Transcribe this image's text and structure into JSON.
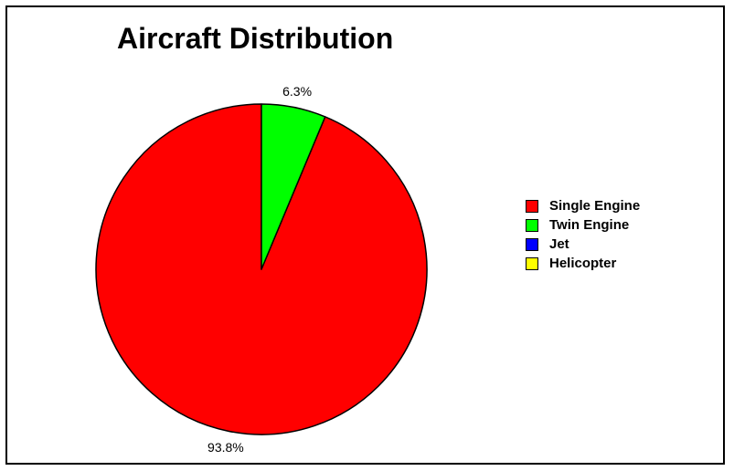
{
  "chart_data": {
    "type": "pie",
    "title": "Aircraft Distribution",
    "categories": [
      "Single Engine",
      "Twin Engine",
      "Jet",
      "Helicopter"
    ],
    "values": [
      93.8,
      6.3,
      0,
      0
    ],
    "value_labels": [
      "93.8%",
      "6.3%",
      "",
      ""
    ],
    "colors": [
      "#ff0000",
      "#00ff00",
      "#0000ff",
      "#ffff00"
    ],
    "legend_position": "right"
  }
}
